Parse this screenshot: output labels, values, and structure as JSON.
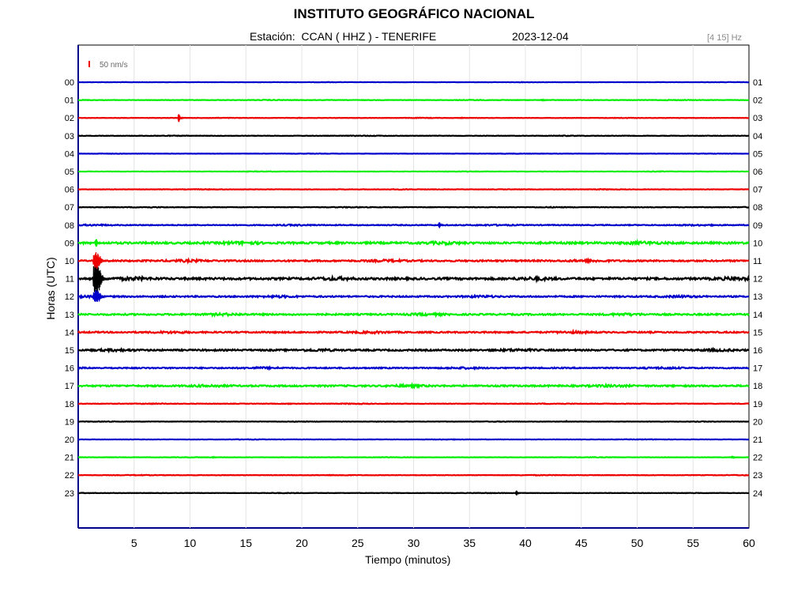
{
  "chart_data": {
    "type": "line",
    "title": "INSTITUTO GEOGRÁFICO NACIONAL",
    "subtitle": "Estación:  CCAN ( HHZ ) - TENERIFE",
    "date": "2023-12-04",
    "filter_label": "[4 15] Hz",
    "scale_label": "50 nm/s",
    "xlabel": "Tiempo (minutos)",
    "ylabel": "Horas (UTC)",
    "xlim": [
      0,
      60
    ],
    "x_ticks": [
      5,
      10,
      15,
      20,
      25,
      30,
      35,
      40,
      45,
      50,
      55,
      60
    ],
    "grid": true,
    "trace_colors": [
      "#0000cc",
      "#00ee00",
      "#ee0000",
      "#000000"
    ],
    "left_hour_labels": [
      "00",
      "01",
      "02",
      "03",
      "04",
      "05",
      "06",
      "07",
      "08",
      "09",
      "10",
      "11",
      "12",
      "13",
      "14",
      "15",
      "16",
      "17",
      "18",
      "19",
      "20",
      "21",
      "22",
      "23"
    ],
    "right_hour_labels": [
      "01",
      "02",
      "03",
      "04",
      "05",
      "06",
      "07",
      "08",
      "09",
      "10",
      "11",
      "12",
      "13",
      "14",
      "15",
      "16",
      "17",
      "18",
      "19",
      "20",
      "21",
      "22",
      "23",
      "24"
    ],
    "trace_noise_level": [
      0.15,
      0.25,
      0.2,
      0.25,
      0.15,
      0.2,
      0.25,
      0.3,
      0.5,
      1.1,
      0.9,
      1.2,
      0.8,
      0.9,
      0.8,
      0.9,
      0.7,
      0.9,
      0.3,
      0.2,
      0.2,
      0.2,
      0.25,
      0.2
    ],
    "events": [
      {
        "hour": 1,
        "minute": 41.5,
        "amplitude": 1.5
      },
      {
        "hour": 2,
        "minute": 9.0,
        "amplitude": 5.0
      },
      {
        "hour": 2,
        "minute": 34.2,
        "amplitude": 1.0
      },
      {
        "hour": 2,
        "minute": 19.7,
        "amplitude": 0.6
      },
      {
        "hour": 8,
        "minute": 32.3,
        "amplitude": 3.5
      },
      {
        "hour": 8,
        "minute": 19.0,
        "amplitude": 1.0
      },
      {
        "hour": 11,
        "minute": 1.6,
        "amplitude": 21.0
      },
      {
        "hour": 10,
        "minute": 1.6,
        "amplitude": 10.0
      },
      {
        "hour": 12,
        "minute": 1.6,
        "amplitude": 8.0
      },
      {
        "hour": 9,
        "minute": 1.6,
        "amplitude": 5.0
      },
      {
        "hour": 12,
        "minute": 7.5,
        "amplitude": 2.0
      },
      {
        "hour": 15,
        "minute": 37.0,
        "amplitude": 2.0
      },
      {
        "hour": 15,
        "minute": 43.0,
        "amplitude": 1.5
      },
      {
        "hour": 16,
        "minute": 5.0,
        "amplitude": 1.3
      },
      {
        "hour": 17,
        "minute": 6.5,
        "amplitude": 1.5
      },
      {
        "hour": 17,
        "minute": 35.5,
        "amplitude": 1.5
      },
      {
        "hour": 18,
        "minute": 18.8,
        "amplitude": 1.5
      },
      {
        "hour": 19,
        "minute": 43.5,
        "amplitude": 1.0
      },
      {
        "hour": 21,
        "minute": 12.0,
        "amplitude": 1.2
      },
      {
        "hour": 21,
        "minute": 58.5,
        "amplitude": 1.8
      },
      {
        "hour": 23,
        "minute": 39.2,
        "amplitude": 3.0
      }
    ]
  }
}
